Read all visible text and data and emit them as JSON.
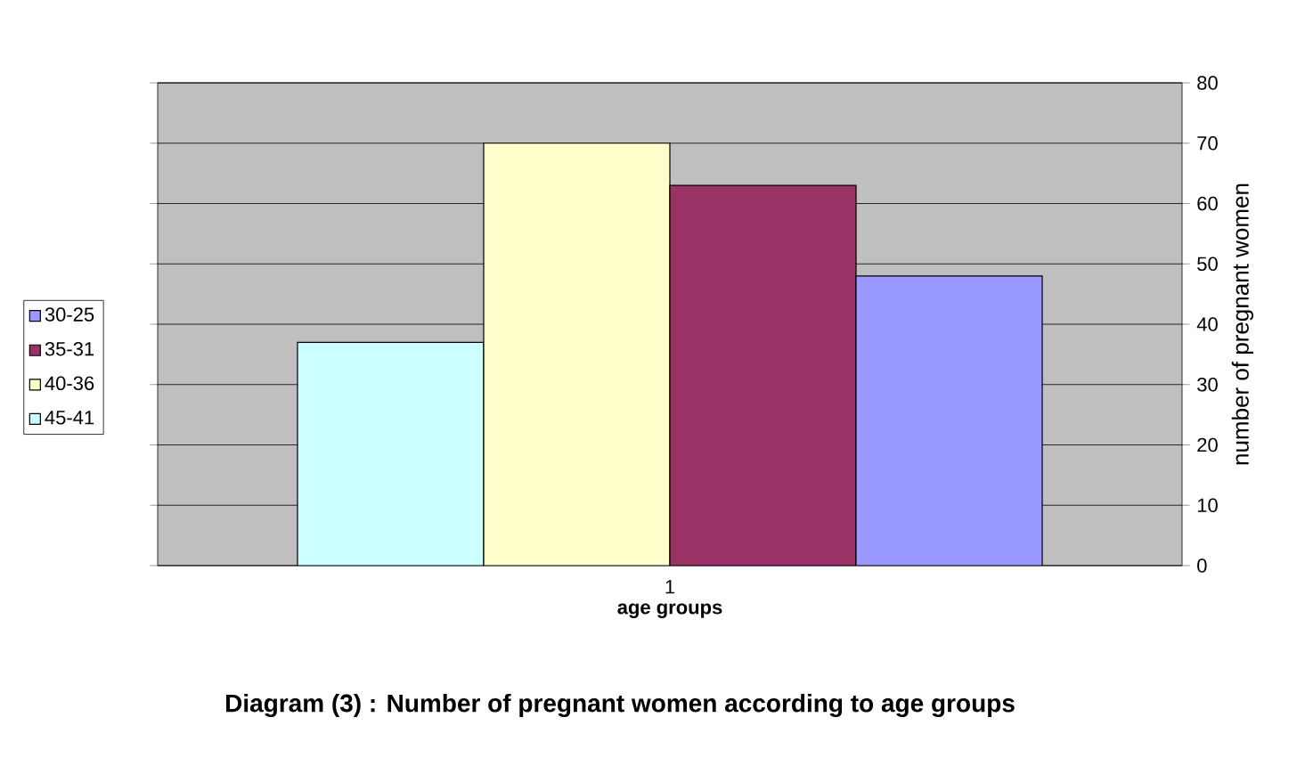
{
  "chart_data": {
    "type": "bar",
    "title": "Diagram (3) : Number of pregnant women according to age groups",
    "xlabel": "age groups",
    "ylabel": "number of pregnant women",
    "categories": [
      "1"
    ],
    "series": [
      {
        "name": "45-41",
        "color": "#ccffff",
        "values": [
          37
        ]
      },
      {
        "name": "40-36",
        "color": "#ffffcc",
        "values": [
          70
        ]
      },
      {
        "name": "35-31",
        "color": "#993366",
        "values": [
          63
        ]
      },
      {
        "name": "30-25",
        "color": "#9999ff",
        "values": [
          48
        ]
      }
    ],
    "ylim": [
      0,
      80
    ],
    "yticks": [
      0,
      10,
      20,
      30,
      40,
      50,
      60,
      70,
      80
    ],
    "grid": "y",
    "legend": "left"
  }
}
